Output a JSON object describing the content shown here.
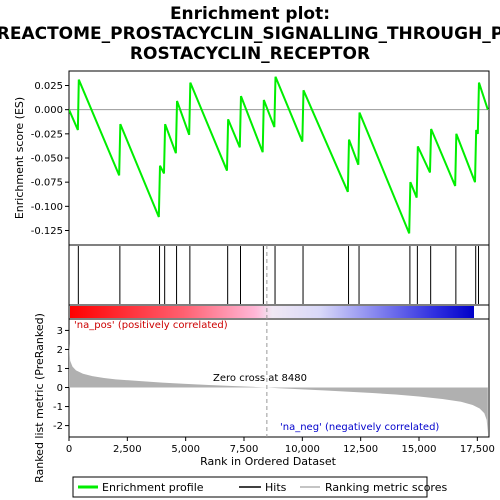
{
  "chart_data": {
    "type": "line",
    "title_lines": [
      "Enrichment plot:",
      "REACTOME_PROSTACYCLIN_SIGNALLING_THROUGH_P",
      "ROSTACYCLIN_RECEPTOR"
    ],
    "xlabel": "Rank in Ordered Dataset",
    "xlim": [
      0,
      18000
    ],
    "x_ticks": [
      0,
      2500,
      5000,
      7500,
      10000,
      12500,
      15000,
      17500
    ],
    "x_tick_labels": [
      "0",
      "2,500",
      "5,000",
      "7,500",
      "10,000",
      "12,500",
      "15,000",
      "17,500"
    ],
    "top_panel": {
      "ylabel": "Enrichment score (ES)",
      "ylim": [
        -0.14,
        0.04
      ],
      "y_ticks": [
        0.025,
        0.0,
        -0.025,
        -0.05,
        -0.075,
        -0.1,
        -0.125
      ],
      "y_tick_labels": [
        "0.025",
        "0.000",
        "-0.025",
        "-0.050",
        "-0.075",
        "-0.100",
        "-0.125"
      ],
      "series": [
        {
          "name": "Enrichment profile",
          "color": "#00ee00",
          "x": [
            0,
            380,
            420,
            2150,
            2200,
            3850,
            3900,
            4070,
            4120,
            4580,
            4630,
            5150,
            5200,
            6770,
            6820,
            7320,
            7370,
            8300,
            8350,
            8800,
            8850,
            10000,
            10050,
            11950,
            12000,
            12400,
            12450,
            14580,
            14630,
            14900,
            14950,
            15470,
            15520,
            16550,
            16600,
            17400,
            17450,
            17520,
            17570,
            17950
          ],
          "y": [
            0.0,
            -0.021,
            0.031,
            -0.068,
            -0.015,
            -0.111,
            -0.058,
            -0.066,
            -0.015,
            -0.045,
            0.009,
            -0.026,
            0.028,
            -0.063,
            -0.01,
            -0.039,
            0.014,
            -0.044,
            0.01,
            -0.018,
            0.034,
            -0.033,
            0.02,
            -0.085,
            -0.031,
            -0.057,
            -0.003,
            -0.128,
            -0.075,
            -0.091,
            -0.038,
            -0.065,
            -0.02,
            -0.079,
            -0.025,
            -0.075,
            -0.021,
            -0.025,
            0.028,
            0.0
          ]
        }
      ]
    },
    "hits": {
      "name": "Hits",
      "color": "#000000",
      "x": [
        400,
        2180,
        3880,
        4100,
        4610,
        5180,
        6800,
        7350,
        8330,
        8830,
        10030,
        11980,
        12430,
        14610,
        14930,
        15500,
        16580,
        17430,
        17550
      ]
    },
    "ranked_bar": {
      "left_color": "#ff0000",
      "right_color": "#0000ff"
    },
    "bottom_panel": {
      "ylabel": "Ranked list metric (PreRanked)",
      "ylim": [
        -2.6,
        3.6
      ],
      "y_ticks": [
        3,
        2,
        1,
        0,
        -1,
        -2
      ],
      "y_tick_labels": [
        "3",
        "2",
        "1",
        "0",
        "-1",
        "-2"
      ],
      "series": [
        {
          "name": "Ranking metric scores",
          "color": "#b0b0b0",
          "x": [
            0,
            50,
            150,
            300,
            600,
            1000,
            1500,
            2000,
            3000,
            4000,
            5000,
            6000,
            7000,
            8000,
            8480,
            9000,
            10000,
            11000,
            12000,
            13000,
            14000,
            15000,
            16000,
            16800,
            17300,
            17600,
            17800,
            17900,
            17950
          ],
          "y": [
            2.3,
            1.4,
            1.1,
            0.9,
            0.72,
            0.6,
            0.5,
            0.43,
            0.34,
            0.26,
            0.19,
            0.13,
            0.08,
            0.03,
            0.0,
            -0.04,
            -0.1,
            -0.16,
            -0.22,
            -0.29,
            -0.37,
            -0.47,
            -0.6,
            -0.75,
            -0.92,
            -1.1,
            -1.35,
            -1.7,
            -2.4
          ]
        }
      ],
      "zero_cross_label": "Zero cross at 8480",
      "zero_cross_x": 8480,
      "pos_label": "'na_pos' (positively correlated)",
      "neg_label": "'na_neg' (negatively correlated)",
      "pos_color": "#cc0000",
      "neg_color": "#0000cc"
    },
    "legend": [
      {
        "label": "Enrichment profile",
        "color": "#00ee00"
      },
      {
        "label": "Hits",
        "color": "#000000"
      },
      {
        "label": "Ranking metric scores",
        "color": "#b0b0b0"
      }
    ]
  }
}
